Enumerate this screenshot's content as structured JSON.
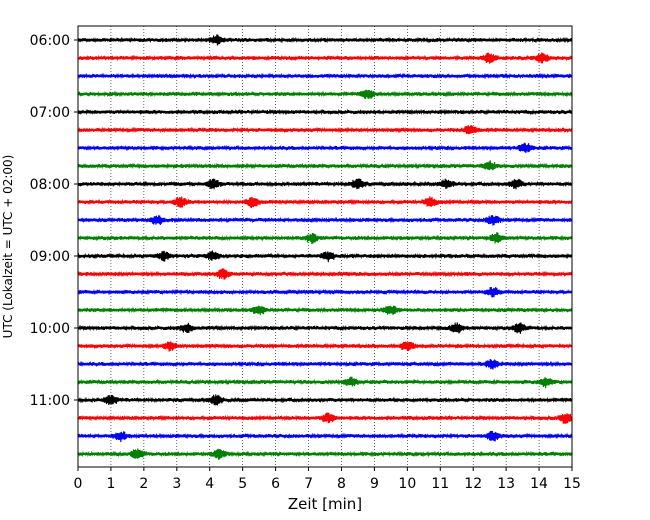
{
  "chart_data": {
    "type": "line",
    "title": "",
    "xlabel": "Zeit  [min]",
    "ylabel": "UTC (Lokalzeit = UTC + 02:00)",
    "xlim": [
      0,
      15
    ],
    "x_ticks": [
      "0",
      "1",
      "2",
      "3",
      "4",
      "5",
      "6",
      "7",
      "8",
      "9",
      "10",
      "11",
      "12",
      "13",
      "14",
      "15"
    ],
    "y_ticks": [
      {
        "label": "06:00",
        "row": 0
      },
      {
        "label": "07:00",
        "row": 4
      },
      {
        "label": "08:00",
        "row": 8
      },
      {
        "label": "09:00",
        "row": 12
      },
      {
        "label": "10:00",
        "row": 16
      },
      {
        "label": "11:00",
        "row": 20
      }
    ],
    "vertical_grid": "dotted, every minute",
    "trace_colors": [
      "#000000",
      "#ff0000",
      "#0000ff",
      "#008000"
    ],
    "traces": [
      {
        "start": "06:00",
        "color": "#000000",
        "events": [
          4.2
        ]
      },
      {
        "start": "06:15",
        "color": "#ff0000",
        "events": [
          12.5,
          14.1
        ]
      },
      {
        "start": "06:30",
        "color": "#0000ff",
        "events": []
      },
      {
        "start": "06:45",
        "color": "#008000",
        "events": [
          8.8
        ]
      },
      {
        "start": "07:00",
        "color": "#000000",
        "events": []
      },
      {
        "start": "07:15",
        "color": "#ff0000",
        "events": [
          11.9
        ]
      },
      {
        "start": "07:30",
        "color": "#0000ff",
        "events": [
          13.6
        ]
      },
      {
        "start": "07:45",
        "color": "#008000",
        "events": [
          12.5
        ]
      },
      {
        "start": "08:00",
        "color": "#000000",
        "events": [
          4.1,
          8.5,
          11.2,
          13.3
        ]
      },
      {
        "start": "08:15",
        "color": "#ff0000",
        "events": [
          3.1,
          5.3,
          10.7
        ]
      },
      {
        "start": "08:30",
        "color": "#0000ff",
        "events": [
          2.4,
          12.6
        ]
      },
      {
        "start": "08:45",
        "color": "#008000",
        "events": [
          7.1,
          12.7
        ]
      },
      {
        "start": "09:00",
        "color": "#000000",
        "events": [
          2.6,
          4.1,
          7.6
        ]
      },
      {
        "start": "09:15",
        "color": "#ff0000",
        "events": [
          4.4
        ]
      },
      {
        "start": "09:30",
        "color": "#0000ff",
        "events": [
          12.6
        ]
      },
      {
        "start": "09:45",
        "color": "#008000",
        "events": [
          5.5,
          9.5
        ]
      },
      {
        "start": "10:00",
        "color": "#000000",
        "events": [
          3.3,
          11.5,
          13.4
        ]
      },
      {
        "start": "10:15",
        "color": "#ff0000",
        "events": [
          2.8,
          10.0
        ]
      },
      {
        "start": "10:30",
        "color": "#0000ff",
        "events": [
          12.6
        ]
      },
      {
        "start": "10:45",
        "color": "#008000",
        "events": [
          8.3,
          14.2
        ]
      },
      {
        "start": "11:00",
        "color": "#000000",
        "events": [
          1.0,
          4.2
        ]
      },
      {
        "start": "11:15",
        "color": "#ff0000",
        "events": [
          7.6,
          14.8
        ]
      },
      {
        "start": "11:30",
        "color": "#0000ff",
        "events": [
          1.3,
          12.6
        ]
      },
      {
        "start": "11:45",
        "color": "#008000",
        "events": [
          1.8,
          4.3
        ]
      }
    ]
  }
}
